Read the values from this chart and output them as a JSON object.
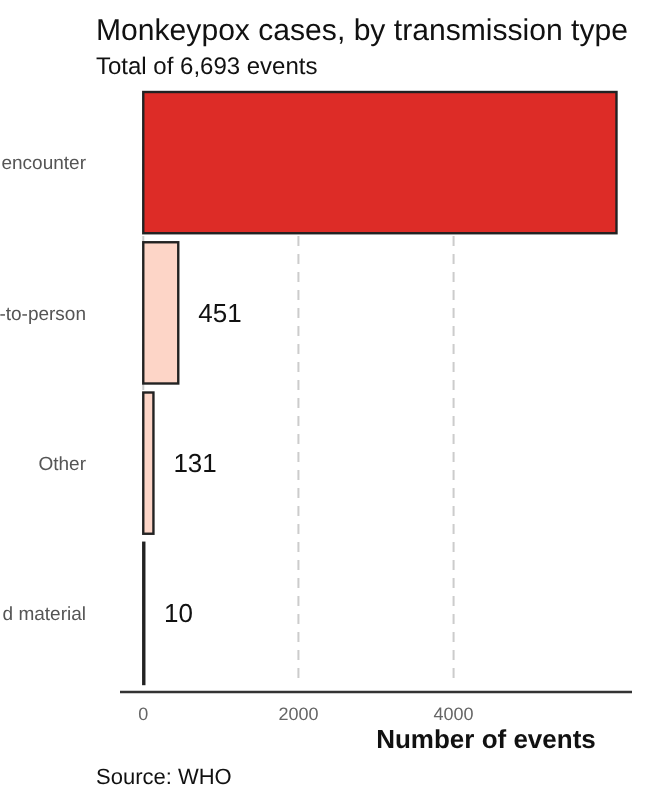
{
  "chart_data": {
    "type": "bar",
    "orientation": "horizontal",
    "title": "Monkeypox cases, by transmission type",
    "subtitle": "Total of 6,693 events",
    "xlabel": "Number of events",
    "categories": [
      "encounter",
      "-to-person",
      "Other",
      "d material"
    ],
    "values": [
      6100,
      451,
      131,
      10
    ],
    "colors": [
      "#dd2c27",
      "#fdd5c7",
      "#fdd5c7",
      "#fdd5c7"
    ],
    "value_labels": [
      null,
      "451",
      "131",
      "10"
    ],
    "xlim": [
      -300,
      6300
    ],
    "xticks": [
      0,
      2000,
      4000
    ],
    "grid": "x",
    "annotations": [
      "Source: WHO"
    ]
  }
}
